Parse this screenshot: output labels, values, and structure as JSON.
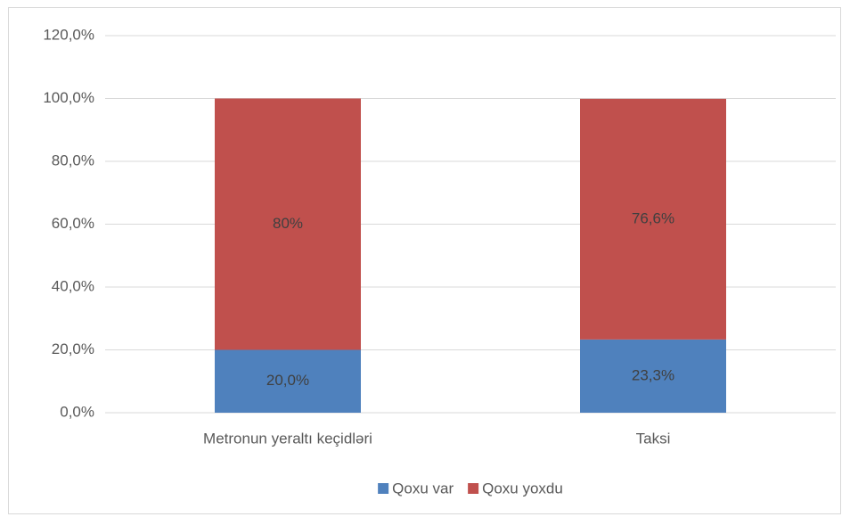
{
  "chart_data": {
    "type": "stacked_bar",
    "categories": [
      "Metronun yeraltı keçidləri",
      "Taksi"
    ],
    "series": [
      {
        "name": "Qoxu var",
        "color": "#4f81bd",
        "values": [
          20.0,
          23.3
        ],
        "value_labels": [
          "20,0%",
          "23,3%"
        ]
      },
      {
        "name": "Qoxu yoxdu",
        "color": "#c0504d",
        "values": [
          80,
          76.6
        ],
        "value_labels": [
          "80%",
          "76,6%"
        ]
      }
    ],
    "ylim": [
      0,
      120
    ],
    "yticks": [
      {
        "value": 0,
        "label": "0,0%"
      },
      {
        "value": 20,
        "label": "20,0%"
      },
      {
        "value": 40,
        "label": "40,0%"
      },
      {
        "value": 60,
        "label": "60,0%"
      },
      {
        "value": 80,
        "label": "80,0%"
      },
      {
        "value": 100,
        "label": "100,0%"
      },
      {
        "value": 120,
        "label": "120,0%"
      }
    ],
    "grid": true,
    "legend": "bottom"
  }
}
